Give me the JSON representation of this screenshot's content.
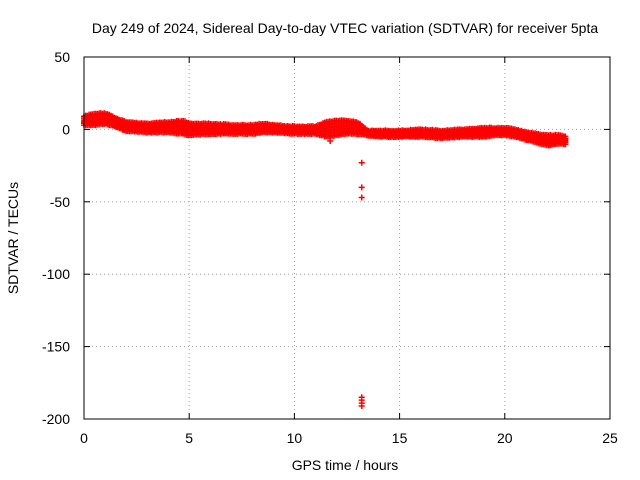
{
  "chart_data": {
    "type": "scatter",
    "title": "Day 249 of 2024, Sidereal Day-to-day VTEC variation (SDTVAR) for receiver 5pta",
    "xlabel": "GPS time / hours",
    "ylabel": "SDTVAR / TECUs",
    "xlim": [
      0,
      25
    ],
    "ylim": [
      -200,
      50
    ],
    "xticks": [
      "0",
      "5",
      "10",
      "15",
      "20",
      "25"
    ],
    "yticks": [
      "50",
      "0",
      "-50",
      "-100",
      "-150",
      "-200"
    ],
    "grid": true,
    "marker": "+",
    "color": "#ff0000",
    "band_series": {
      "name": "SDTVAR",
      "x": [
        0.0,
        0.5,
        1.0,
        1.5,
        2.0,
        3.0,
        4.0,
        4.7,
        5.0,
        6.0,
        7.0,
        8.0,
        8.5,
        9.0,
        10.0,
        11.0,
        11.5,
        12.0,
        12.5,
        13.0,
        13.5,
        14.0,
        15.0,
        16.0,
        17.0,
        18.0,
        19.0,
        19.5,
        20.0,
        20.5,
        21.0,
        21.5,
        22.0,
        22.5,
        22.9
      ],
      "upper": [
        9,
        11,
        11,
        8,
        5,
        4,
        5,
        6,
        4,
        4,
        3,
        3,
        4,
        3,
        2,
        2,
        5,
        6,
        6,
        5,
        -1,
        -1,
        -1,
        0,
        -1,
        0,
        1,
        1,
        1,
        0,
        -2,
        -3,
        -4,
        -4,
        -5
      ],
      "lower": [
        3,
        3,
        4,
        2,
        -1,
        -2,
        -2,
        -3,
        -4,
        -3,
        -3,
        -3,
        -2,
        -2,
        -3,
        -3,
        -5,
        -4,
        -3,
        -3,
        -4,
        -5,
        -5,
        -5,
        -6,
        -5,
        -5,
        -4,
        -4,
        -5,
        -7,
        -9,
        -11,
        -10,
        -10
      ]
    },
    "outliers": [
      {
        "x": 13.2,
        "y": -23
      },
      {
        "x": 13.2,
        "y": -40
      },
      {
        "x": 13.2,
        "y": -47
      },
      {
        "x": 13.2,
        "y": -185
      },
      {
        "x": 13.2,
        "y": -187
      },
      {
        "x": 13.2,
        "y": -189
      },
      {
        "x": 13.2,
        "y": -191
      },
      {
        "x": 11.7,
        "y": -8
      }
    ]
  }
}
